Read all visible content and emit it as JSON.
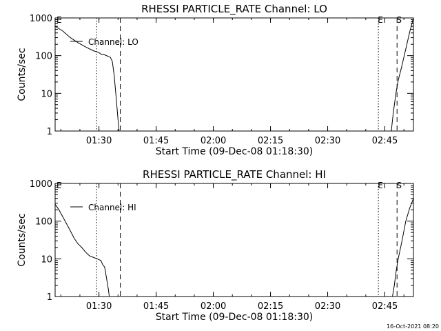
{
  "footer": {
    "timestamp": "16-Oct-2021 08:20"
  },
  "chart_data": [
    {
      "type": "line",
      "title": "RHESSI PARTICLE_RATE Channel: LO",
      "xlabel": "Start Time (09-Dec-08 01:18:30)",
      "ylabel": "Counts/sec",
      "yscale": "log",
      "xlim_minutes": [
        0,
        94
      ],
      "ylim": [
        1,
        1000
      ],
      "x_ticks": [
        {
          "min": 11.5,
          "label": "01:30"
        },
        {
          "min": 26.5,
          "label": "01:45"
        },
        {
          "min": 41.5,
          "label": "02:00"
        },
        {
          "min": 56.5,
          "label": "02:15"
        },
        {
          "min": 71.5,
          "label": "02:30"
        },
        {
          "min": 86.5,
          "label": "02:45"
        }
      ],
      "y_ticks": [
        {
          "value": 1,
          "label": "1"
        },
        {
          "value": 10,
          "label": "10"
        },
        {
          "value": 100,
          "label": "100"
        },
        {
          "value": 1000,
          "label": "1000"
        }
      ],
      "legend": "Channel: LO",
      "markers": [
        {
          "label": "E",
          "min": 0.5,
          "style": "none"
        },
        {
          "label": "",
          "min": 10.9,
          "style": "dotted"
        },
        {
          "label": "",
          "min": 17.1,
          "style": "dashed"
        },
        {
          "label": "E",
          "min": 84.8,
          "style": "dotted"
        },
        {
          "label": "S",
          "min": 89.7,
          "style": "dashed"
        },
        {
          "label": "",
          "min": 94.0,
          "style": "dashdot"
        }
      ],
      "series": [
        {
          "segments": [
            [
              [
                0,
                600
              ],
              [
                2,
                450
              ],
              [
                4,
                300
              ],
              [
                6,
                220
              ],
              [
                8,
                170
              ],
              [
                10,
                135
              ],
              [
                11.5,
                120
              ],
              [
                12,
                110
              ],
              [
                13,
                105
              ],
              [
                14,
                95
              ],
              [
                14.5,
                90
              ],
              [
                15,
                70
              ],
              [
                15.5,
                30
              ],
              [
                16,
                8
              ],
              [
                16.5,
                2
              ],
              [
                16.8,
                1
              ]
            ],
            [
              [
                88.2,
                1
              ],
              [
                88.7,
                3
              ],
              [
                89.4,
                10
              ],
              [
                90,
                22
              ],
              [
                91,
                55
              ],
              [
                92,
                150
              ],
              [
                93,
                420
              ],
              [
                94,
                1000
              ]
            ]
          ]
        }
      ]
    },
    {
      "type": "line",
      "title": "RHESSI PARTICLE_RATE Channel: HI",
      "xlabel": "Start Time (09-Dec-08 01:18:30)",
      "ylabel": "Counts/sec",
      "yscale": "log",
      "xlim_minutes": [
        0,
        94
      ],
      "ylim": [
        1,
        1000
      ],
      "x_ticks": [
        {
          "min": 11.5,
          "label": "01:30"
        },
        {
          "min": 26.5,
          "label": "01:45"
        },
        {
          "min": 41.5,
          "label": "02:00"
        },
        {
          "min": 56.5,
          "label": "02:15"
        },
        {
          "min": 71.5,
          "label": "02:30"
        },
        {
          "min": 86.5,
          "label": "02:45"
        }
      ],
      "y_ticks": [
        {
          "value": 1,
          "label": "1"
        },
        {
          "value": 10,
          "label": "10"
        },
        {
          "value": 100,
          "label": "100"
        },
        {
          "value": 1000,
          "label": "1000"
        }
      ],
      "legend": "Channel: HI",
      "markers": [
        {
          "label": "E",
          "min": 0.5,
          "style": "none"
        },
        {
          "label": "",
          "min": 10.9,
          "style": "dotted"
        },
        {
          "label": "",
          "min": 17.1,
          "style": "dashed"
        },
        {
          "label": "E",
          "min": 84.8,
          "style": "dotted"
        },
        {
          "label": "S",
          "min": 89.7,
          "style": "dashed"
        },
        {
          "label": "",
          "min": 94.0,
          "style": "dashdot"
        }
      ],
      "series": [
        {
          "segments": [
            [
              [
                0,
                280
              ],
              [
                1,
                200
              ],
              [
                2,
                130
              ],
              [
                3,
                85
              ],
              [
                4,
                55
              ],
              [
                5,
                35
              ],
              [
                6,
                25
              ],
              [
                7,
                20
              ],
              [
                8,
                15
              ],
              [
                9,
                12
              ],
              [
                10,
                11
              ],
              [
                11,
                10
              ],
              [
                12,
                9
              ],
              [
                12.5,
                7
              ],
              [
                13,
                6
              ],
              [
                13.5,
                3
              ],
              [
                14,
                1.5
              ],
              [
                14.2,
                1
              ]
            ],
            [
              [
                88.5,
                1
              ],
              [
                89,
                2
              ],
              [
                89.5,
                5
              ],
              [
                90,
                10
              ],
              [
                91,
                30
              ],
              [
                92,
                100
              ],
              [
                93,
                220
              ],
              [
                94,
                400
              ]
            ]
          ]
        }
      ]
    }
  ]
}
